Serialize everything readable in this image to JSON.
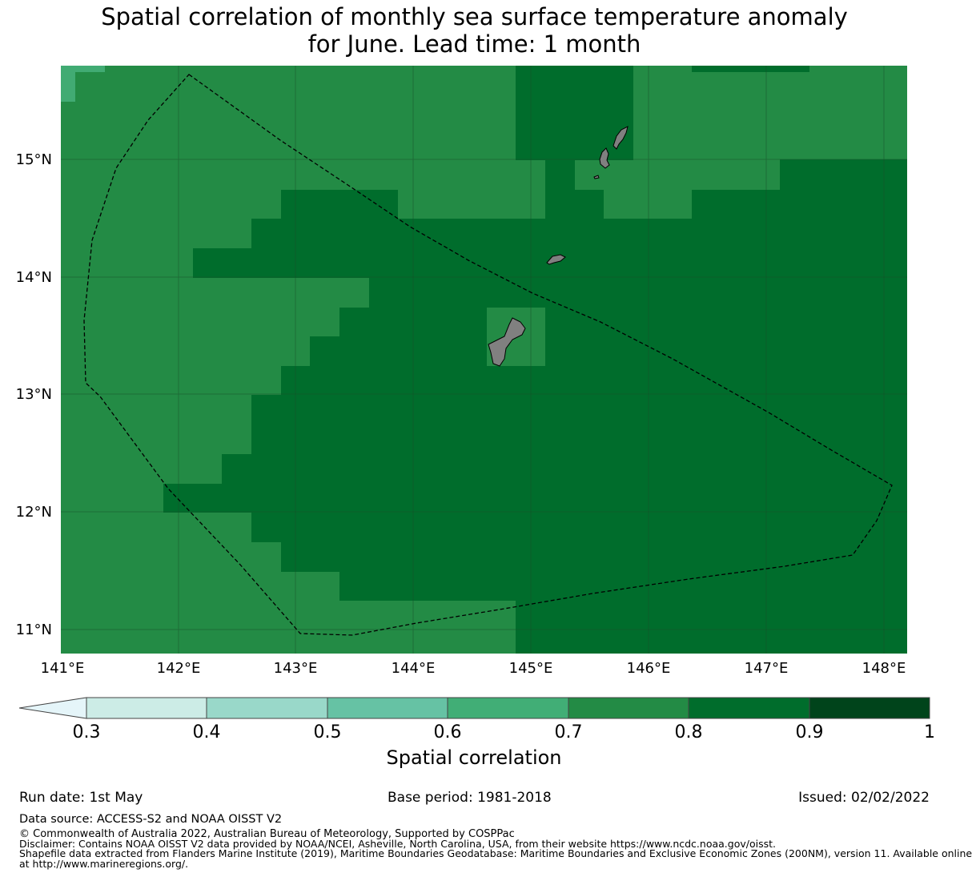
{
  "title": {
    "line1": "Spatial correlation of monthly sea surface temperature anomaly",
    "line2": "for June. Lead time: 1 month"
  },
  "map": {
    "lon_labels": [
      "141°E",
      "142°E",
      "143°E",
      "144°E",
      "145°E",
      "146°E",
      "147°E",
      "148°E"
    ],
    "lat_labels": [
      "15°N",
      "14°N",
      "13°N",
      "12°N",
      "11°N"
    ],
    "colors": {
      "c06_07": "#41ab73",
      "c07_08": "#238b45",
      "c08_09": "#006d2c",
      "land": "#808080",
      "gridline": "#1a4d2a"
    },
    "regions": [
      {
        "name": "0.6-0.7",
        "color": "c06_07"
      },
      {
        "name": "0.7-0.8",
        "color": "c07_08"
      },
      {
        "name": "0.8-0.9",
        "color": "c08_09"
      }
    ]
  },
  "colorbar": {
    "title": "Spatial correlation",
    "ticks": [
      "0.3",
      "0.4",
      "0.5",
      "0.6",
      "0.7",
      "0.8",
      "0.9",
      "1"
    ],
    "colors": [
      "#e5f5f9",
      "#ccece6",
      "#99d8c9",
      "#66c2a4",
      "#41ae76",
      "#238b45",
      "#006d2c",
      "#00441b"
    ]
  },
  "footer": {
    "run_date": "Run date: 1st May",
    "base_period": "Base period: 1981-2018",
    "issued": "Issued: 02/02/2022",
    "data_source": "Data source: ACCESS-S2 and NOAA OISST V2",
    "copyright": "© Commonwealth of Australia 2022, Australian Bureau of Meteorology, Supported by COSPPac",
    "disclaimer": "Disclaimer: Contains NOAA OISST V2 data provided by NOAA/NCEI, Asheville, North Carolina, USA, from their website https://www.ncdc.noaa.gov/oisst.",
    "shapefile_line1": "Shapefile data extracted from Flanders Marine Institute (2019), Maritime Boundaries Geodatabase: Maritime Boundaries and Exclusive Economic Zones (200NM), version 11. Available online",
    "shapefile_line2": "at http://www.marineregions.org/."
  }
}
